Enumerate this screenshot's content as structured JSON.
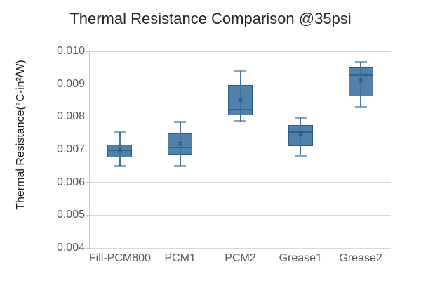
{
  "chart_data": {
    "type": "boxplot",
    "title": "Thermal Resistance Comparison @35psi",
    "ylabel": "Thermal Resistance(°C-in²/W)",
    "xlabel": "",
    "categories": [
      "Fill-PCM800",
      "PCM1",
      "PCM2",
      "Grease1",
      "Grease2"
    ],
    "ylim": [
      0.004,
      0.01
    ],
    "y_tick_labels": [
      "0.010",
      "0.009",
      "0.008",
      "0.007",
      "0.006",
      "0.005",
      "0.004"
    ],
    "grid": "horizontal-only",
    "legend": "none",
    "series": [
      {
        "name": "Fill-PCM800",
        "whisker_low": 0.0065,
        "q1": 0.00677,
        "median": 0.00698,
        "mean": 0.00699,
        "q3": 0.00716,
        "whisker_high": 0.00754
      },
      {
        "name": "PCM1",
        "whisker_low": 0.00649,
        "q1": 0.00686,
        "median": 0.00706,
        "mean": 0.00717,
        "q3": 0.00749,
        "whisker_high": 0.00784
      },
      {
        "name": "PCM2",
        "whisker_low": 0.00786,
        "q1": 0.00806,
        "median": 0.00822,
        "mean": 0.00849,
        "q3": 0.00897,
        "whisker_high": 0.0094
      },
      {
        "name": "Grease1",
        "whisker_low": 0.00682,
        "q1": 0.00711,
        "median": 0.00754,
        "mean": 0.00748,
        "q3": 0.00776,
        "whisker_high": 0.00798
      },
      {
        "name": "Grease2",
        "whisker_low": 0.00829,
        "q1": 0.00862,
        "median": 0.00927,
        "mean": 0.00911,
        "q3": 0.0095,
        "whisker_high": 0.00967
      }
    ],
    "mean_marker_glyph": "×",
    "colors": {
      "box_fill": "#5181ab",
      "box_border": "#2b5d88",
      "median_line": "#2f6190",
      "whisker_line": "#3f6f9c",
      "whisker_cap": "#82a8c8",
      "mean_marker": "#24507c",
      "gridline": "#d9d9d9",
      "axis_line": "#c8c8c8",
      "tick_label": "#595959",
      "title": "#262626"
    }
  }
}
